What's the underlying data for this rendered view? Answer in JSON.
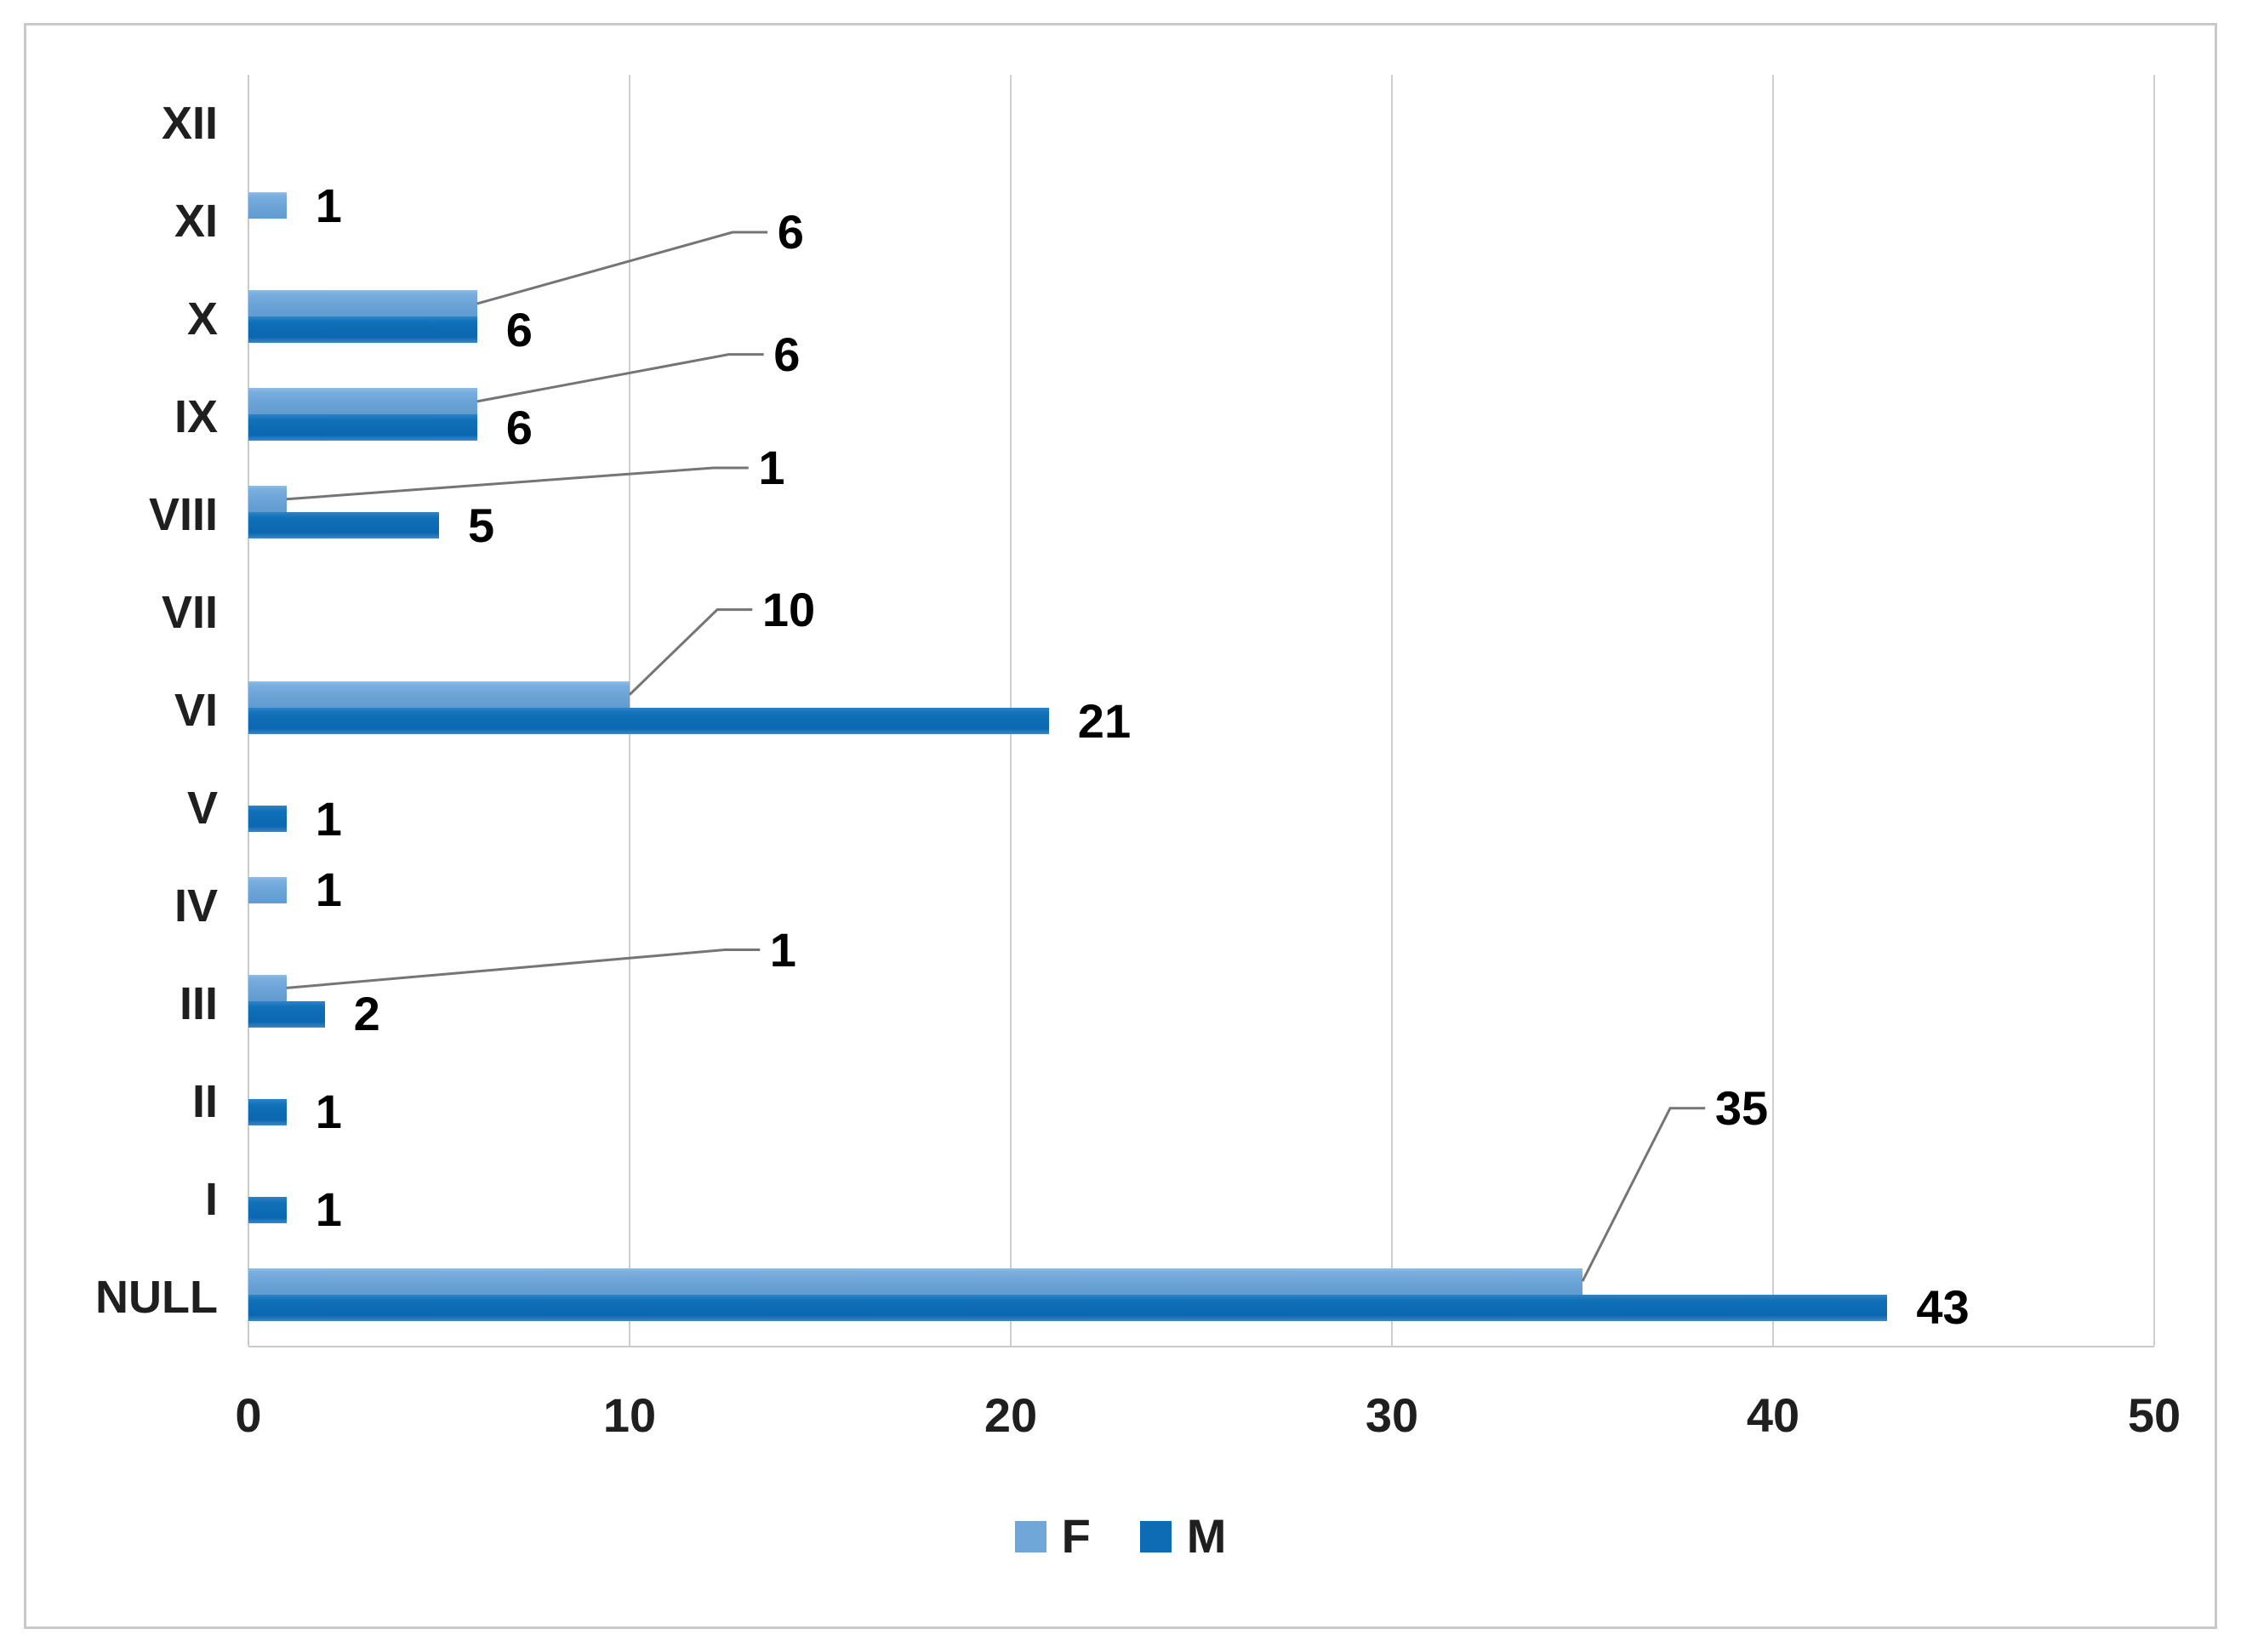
{
  "figure": {
    "description": "Horizontal grouped bar chart of counts by Roman-numeral category and sex"
  },
  "chart_data": {
    "type": "bar",
    "orientation": "horizontal",
    "title": "",
    "xlabel": "",
    "ylabel": "",
    "categories": [
      "XII",
      "XI",
      "X",
      "IX",
      "VIII",
      "VII",
      "VI",
      "V",
      "IV",
      "III",
      "II",
      "I",
      "NULL"
    ],
    "series": [
      {
        "name": "F",
        "color": "#6fa7d8",
        "values": [
          0,
          1,
          6,
          6,
          1,
          0,
          10,
          0,
          1,
          1,
          0,
          0,
          35
        ]
      },
      {
        "name": "M",
        "color": "#0e6cb4",
        "values": [
          0,
          0,
          6,
          6,
          5,
          0,
          21,
          1,
          0,
          2,
          1,
          1,
          43
        ]
      }
    ],
    "xlim": [
      0,
      50
    ],
    "xticks": [
      0,
      10,
      20,
      30,
      40,
      50
    ],
    "grid": "vertical",
    "data_labels": true,
    "legend_position": "bottom",
    "legend": [
      "F",
      "M"
    ],
    "callouts": [
      {
        "series": "F",
        "category": "X",
        "value": 6,
        "label": "6",
        "label_x": 13.7,
        "label_y": 1.61
      },
      {
        "series": "F",
        "category": "IX",
        "value": 6,
        "label": "6",
        "label_x": 13.6,
        "label_y": 2.86
      },
      {
        "series": "F",
        "category": "VIII",
        "value": 1,
        "label": "1",
        "label_x": 13.2,
        "label_y": 4.02
      },
      {
        "series": "F",
        "category": "VI",
        "value": 10,
        "label": "10",
        "label_x": 13.3,
        "label_y": 5.47
      },
      {
        "series": "F",
        "category": "III",
        "value": 1,
        "label": "1",
        "label_x": 13.5,
        "label_y": 8.95
      },
      {
        "series": "F",
        "category": "NULL",
        "value": 35,
        "label": "35",
        "label_x": 38.3,
        "label_y": 10.57
      }
    ],
    "style": {
      "f_color": "#6fa7d8",
      "m_color": "#0e6cb4",
      "gridline_color": "#cfcfcf",
      "axis_line_color": "#c9c9c9",
      "callout_line_color": "#757575",
      "axis_text_color": "#1f1f1f",
      "data_label_color": "#000000",
      "frame_border_color": "#c9c9c9"
    }
  }
}
